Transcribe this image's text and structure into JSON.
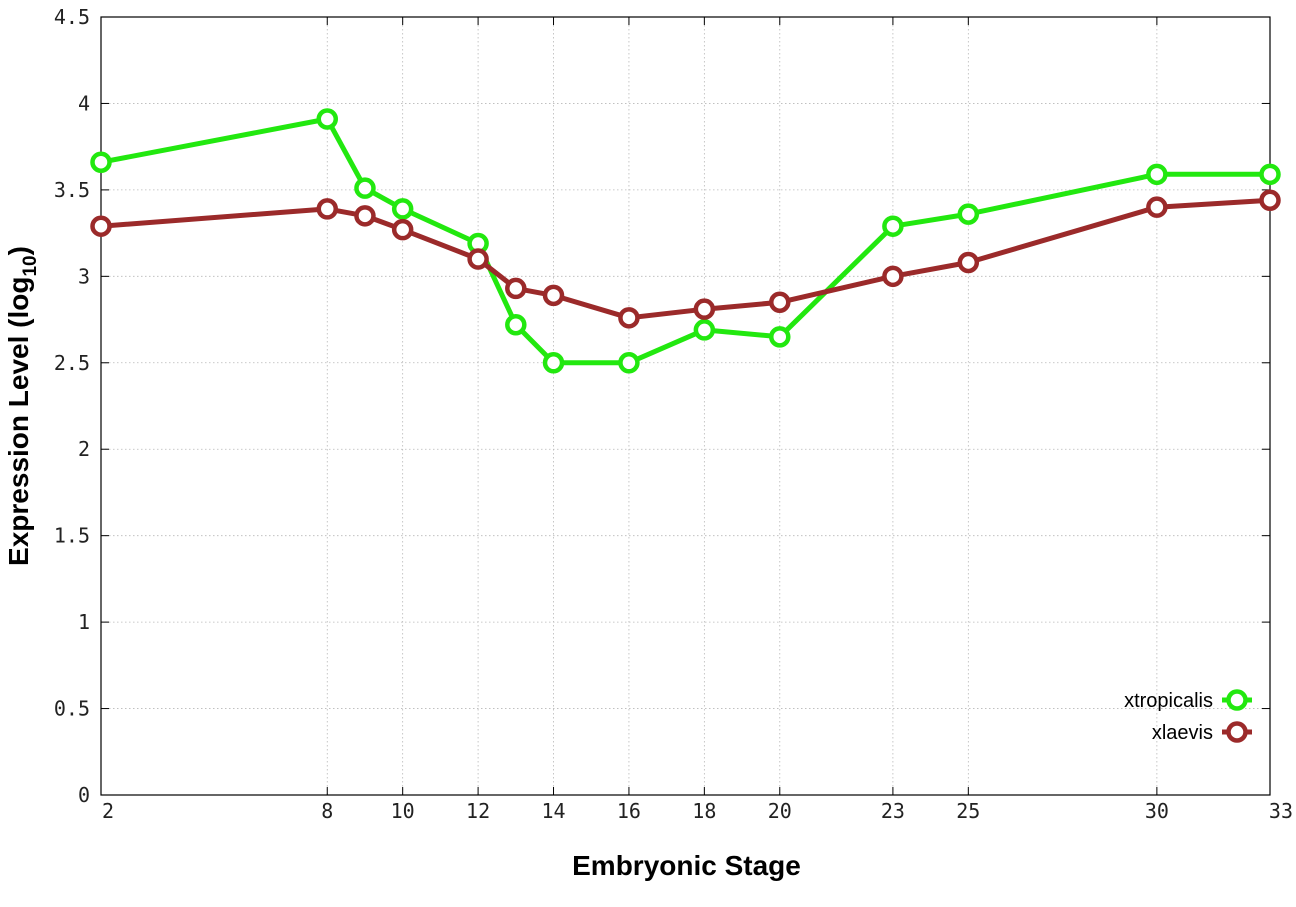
{
  "chart_data": {
    "type": "line",
    "xlabel": "Embryonic Stage",
    "ylabel_main": "Expression Level (log",
    "ylabel_sub": "10",
    "ylabel_end": ")",
    "ylim": [
      0,
      4.5
    ],
    "xlim": [
      2,
      33
    ],
    "grid": true,
    "legend_position": "bottom-right",
    "x_ticks": [
      {
        "value": 2,
        "label": "2"
      },
      {
        "value": 8,
        "label": "8"
      },
      {
        "value": 10,
        "label": "10"
      },
      {
        "value": 12,
        "label": "12"
      },
      {
        "value": 14,
        "label": "14"
      },
      {
        "value": 16,
        "label": "16"
      },
      {
        "value": 18,
        "label": "18"
      },
      {
        "value": 20,
        "label": "20"
      },
      {
        "value": 23,
        "label": "23"
      },
      {
        "value": 25,
        "label": "25"
      },
      {
        "value": 30,
        "label": "30"
      },
      {
        "value": 33,
        "label": "33"
      }
    ],
    "y_ticks": [
      {
        "value": 0,
        "label": "0"
      },
      {
        "value": 0.5,
        "label": "0.5"
      },
      {
        "value": 1,
        "label": "1"
      },
      {
        "value": 1.5,
        "label": "1.5"
      },
      {
        "value": 2,
        "label": "2"
      },
      {
        "value": 2.5,
        "label": "2.5"
      },
      {
        "value": 3,
        "label": "3"
      },
      {
        "value": 3.5,
        "label": "3.5"
      },
      {
        "value": 4,
        "label": "4"
      },
      {
        "value": 4.5,
        "label": "4.5"
      }
    ],
    "series": [
      {
        "name": "xtropicalis",
        "color": "#22e80f",
        "points": [
          {
            "x": 2,
            "y": 3.66
          },
          {
            "x": 8,
            "y": 3.91
          },
          {
            "x": 9,
            "y": 3.51
          },
          {
            "x": 10,
            "y": 3.39
          },
          {
            "x": 12,
            "y": 3.19
          },
          {
            "x": 13,
            "y": 2.72
          },
          {
            "x": 14,
            "y": 2.5
          },
          {
            "x": 16,
            "y": 2.5
          },
          {
            "x": 18,
            "y": 2.69
          },
          {
            "x": 20,
            "y": 2.65
          },
          {
            "x": 23,
            "y": 3.29
          },
          {
            "x": 25,
            "y": 3.36
          },
          {
            "x": 30,
            "y": 3.59
          },
          {
            "x": 33,
            "y": 3.59
          }
        ]
      },
      {
        "name": "xlaevis",
        "color": "#9b2a2a",
        "points": [
          {
            "x": 2,
            "y": 3.29
          },
          {
            "x": 8,
            "y": 3.39
          },
          {
            "x": 9,
            "y": 3.35
          },
          {
            "x": 10,
            "y": 3.27
          },
          {
            "x": 12,
            "y": 3.1
          },
          {
            "x": 13,
            "y": 2.93
          },
          {
            "x": 14,
            "y": 2.89
          },
          {
            "x": 16,
            "y": 2.76
          },
          {
            "x": 18,
            "y": 2.81
          },
          {
            "x": 20,
            "y": 2.85
          },
          {
            "x": 23,
            "y": 3.0
          },
          {
            "x": 25,
            "y": 3.08
          },
          {
            "x": 30,
            "y": 3.4
          },
          {
            "x": 33,
            "y": 3.44
          }
        ]
      }
    ]
  }
}
